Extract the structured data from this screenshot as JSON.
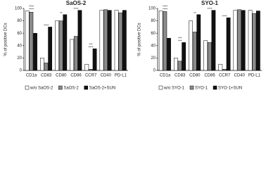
{
  "chart_data": [
    {
      "type": "bar",
      "title": "SaOS-2",
      "y_label": "% of positive DCs",
      "categories": [
        "CD1a",
        "CD83",
        "CD80",
        "CD86",
        "CCR7",
        "CD40",
        "PD-L1"
      ],
      "series": [
        {
          "name": "w/o SaOS-2",
          "color": "#ffffff",
          "values": [
            96,
            20,
            80,
            50,
            10,
            97,
            97
          ]
        },
        {
          "name": "SaOS-2",
          "color": "#8a8a8a",
          "values": [
            94,
            12,
            80,
            55,
            2,
            98,
            93
          ]
        },
        {
          "name": "SaOS-2+SUN",
          "color": "#111111",
          "values": [
            60,
            70,
            90,
            97,
            35,
            97,
            97
          ]
        }
      ],
      "ylim": [
        0,
        100
      ],
      "yticks": [
        0,
        20,
        40,
        60,
        80,
        100
      ],
      "annotations": [
        {
          "category": "CD1a",
          "text": "****"
        },
        {
          "category": "CD1a",
          "text": "****"
        },
        {
          "category": "CD83",
          "text": "****"
        },
        {
          "category": "CD80",
          "text": "**"
        },
        {
          "category": "CD86",
          "text": "****"
        },
        {
          "category": "CCR7",
          "text": "****"
        },
        {
          "category": "CCR7",
          "text": "***"
        }
      ]
    },
    {
      "type": "bar",
      "title": "SYO-1",
      "y_label": "% of positive DCs",
      "categories": [
        "CD1a",
        "CD83",
        "CD80",
        "CD86",
        "CCR7",
        "CD40",
        "PD-L1"
      ],
      "series": [
        {
          "name": "w/o SYO-1",
          "color": "#ffffff",
          "values": [
            96,
            20,
            80,
            48,
            10,
            97,
            97
          ]
        },
        {
          "name": "SYO-1",
          "color": "#8a8a8a",
          "values": [
            95,
            15,
            62,
            45,
            2,
            98,
            92
          ]
        },
        {
          "name": "SYO-1+SUN",
          "color": "#111111",
          "values": [
            52,
            45,
            90,
            97,
            85,
            97,
            96
          ]
        }
      ],
      "ylim": [
        0,
        100
      ],
      "yticks": [
        0,
        20,
        40,
        60,
        80,
        100
      ],
      "annotations": [
        {
          "category": "CD1a",
          "text": "****"
        },
        {
          "category": "CD1a",
          "text": "****"
        },
        {
          "category": "CD83",
          "text": "***"
        },
        {
          "category": "CD83",
          "text": "***"
        },
        {
          "category": "CD80",
          "text": "**"
        },
        {
          "category": "CD86",
          "text": "****"
        },
        {
          "category": "CCR7",
          "text": "****"
        }
      ]
    }
  ]
}
